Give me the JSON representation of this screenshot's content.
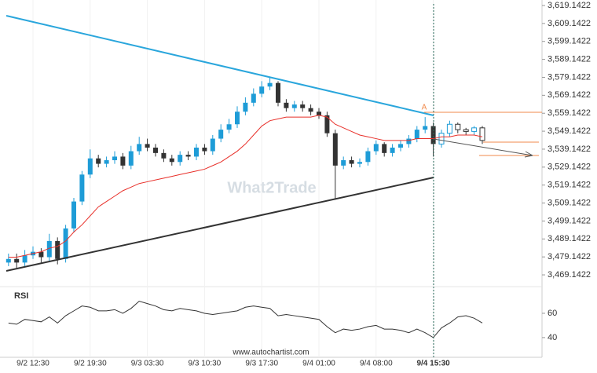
{
  "chart_data": {
    "type": "candlestick",
    "categories": [
      null,
      null,
      null,
      "9/2 12:30",
      null,
      null,
      null,
      null,
      null,
      null,
      "9/2 19:30",
      null,
      null,
      null,
      null,
      null,
      null,
      "9/3 03:30",
      null,
      null,
      null,
      null,
      null,
      null,
      "9/3 10:30",
      null,
      null,
      null,
      null,
      null,
      null,
      "9/3 17:30",
      null,
      null,
      null,
      null,
      null,
      null,
      "9/4 01:00",
      null,
      null,
      null,
      null,
      null,
      null,
      "9/4 08:00",
      null,
      null,
      null,
      null,
      null,
      null,
      "9/4 15:30",
      null,
      null,
      null,
      null,
      null,
      null
    ],
    "open": [
      3476,
      3478,
      3476,
      3480,
      3482,
      3479,
      3488,
      3478,
      3495,
      3510,
      3525,
      3534,
      3531,
      3533,
      3535,
      3530,
      3538,
      3542,
      3540,
      3537,
      3534,
      3532,
      3536,
      3535,
      3540,
      3538,
      3545,
      3550,
      3553,
      3560,
      3565,
      3570,
      3574,
      3576,
      3565,
      3562,
      3564,
      3562,
      3560,
      3558,
      3548,
      3530,
      3533,
      3531,
      3532,
      3538,
      3542,
      3537,
      3540,
      3542,
      3545,
      3550,
      3552,
      3542,
      3548,
      3553,
      3550,
      3549,
      3551
    ],
    "high": [
      3481,
      3481,
      3483,
      3485,
      3484,
      3492,
      3490,
      3497,
      3512,
      3527,
      3539,
      3536,
      3535,
      3538,
      3537,
      3541,
      3546,
      3545,
      3542,
      3539,
      3536,
      3538,
      3538,
      3542,
      3542,
      3547,
      3553,
      3556,
      3563,
      3568,
      3573,
      3577,
      3579,
      3577,
      3567,
      3566,
      3566,
      3564,
      3562,
      3560,
      3550,
      3535,
      3535,
      3534,
      3540,
      3544,
      3543,
      3542,
      3544,
      3547,
      3552,
      3557,
      3554,
      3550,
      3555,
      3554,
      3551,
      3552,
      3552
    ],
    "low": [
      3474,
      3473,
      3474,
      3478,
      3476,
      3477,
      3475,
      3476,
      3493,
      3508,
      3523,
      3529,
      3529,
      3531,
      3528,
      3528,
      3536,
      3538,
      3535,
      3532,
      3530,
      3530,
      3533,
      3533,
      3536,
      3536,
      3543,
      3548,
      3551,
      3558,
      3563,
      3568,
      3572,
      3563,
      3560,
      3560,
      3560,
      3558,
      3556,
      3546,
      3511,
      3528,
      3529,
      3529,
      3530,
      3536,
      3535,
      3535,
      3538,
      3540,
      3543,
      3548,
      3535,
      3540,
      3546,
      3548,
      3547,
      3547,
      3542
    ],
    "close": [
      3478,
      3476,
      3480,
      3482,
      3479,
      3488,
      3478,
      3495,
      3510,
      3525,
      3534,
      3531,
      3533,
      3535,
      3530,
      3538,
      3542,
      3540,
      3537,
      3534,
      3532,
      3536,
      3535,
      3540,
      3538,
      3545,
      3550,
      3553,
      3560,
      3565,
      3570,
      3574,
      3576,
      3565,
      3562,
      3564,
      3562,
      3560,
      3558,
      3548,
      3530,
      3533,
      3531,
      3532,
      3538,
      3542,
      3537,
      3540,
      3542,
      3545,
      3550,
      3552,
      3542,
      3548,
      3553,
      3550,
      3549,
      3551,
      3544
    ],
    "ma": {
      "color": "#e8302a",
      "values": [
        3479,
        3479,
        3480,
        3481,
        3482,
        3484,
        3485,
        3488,
        3493,
        3497,
        3502,
        3507,
        3510,
        3513,
        3516,
        3518,
        3520,
        3521,
        3522,
        3523,
        3524,
        3525,
        3526,
        3527,
        3528,
        3530,
        3532,
        3535,
        3538,
        3542,
        3547,
        3552,
        3555,
        3556,
        3557,
        3557,
        3557,
        3557,
        3558,
        3557,
        3553,
        3551,
        3549,
        3547,
        3546,
        3545,
        3544,
        3544,
        3544,
        3544,
        3545,
        3545,
        3545,
        3546,
        3546,
        3547,
        3547,
        3547,
        3546
      ]
    },
    "up_color": "#1e9cd7",
    "down_color": "#333333",
    "ylim": [
      3462.6,
      3622.2
    ],
    "yticks": [
      {
        "value": 3469.1422,
        "label": "3,469.1422"
      },
      {
        "value": 3479.1422,
        "label": "3,479.1422"
      },
      {
        "value": 3489.1422,
        "label": "3,489.1422"
      },
      {
        "value": 3499.1422,
        "label": "3,499.1422"
      },
      {
        "value": 3509.1422,
        "label": "3,509.1422"
      },
      {
        "value": 3519.1422,
        "label": "3,519.1422"
      },
      {
        "value": 3529.1422,
        "label": "3,529.1422"
      },
      {
        "value": 3539.1422,
        "label": "3,539.1422"
      },
      {
        "value": 3549.1422,
        "label": "3,549.1422"
      },
      {
        "value": 3559.1422,
        "label": "3,559.1422"
      },
      {
        "value": 3569.1422,
        "label": "3,569.1422"
      },
      {
        "value": 3579.1422,
        "label": "3,579.1422"
      },
      {
        "value": 3589.1422,
        "label": "3,589.1422"
      },
      {
        "value": 3599.1422,
        "label": "3,599.1422"
      },
      {
        "value": 3609.1422,
        "label": "3,609.1422"
      },
      {
        "value": 3619.1422,
        "label": "3,619.1422"
      }
    ],
    "rsi": {
      "label": "RSI",
      "color": "#333333",
      "values": [
        52,
        51,
        55,
        54,
        53,
        57,
        52,
        58,
        62,
        66,
        65,
        62,
        62,
        63,
        60,
        64,
        70,
        68,
        66,
        63,
        62,
        64,
        63,
        62,
        60,
        59,
        60,
        61,
        62,
        65,
        66,
        65,
        64,
        58,
        59,
        58,
        57,
        56,
        55,
        49,
        44,
        47,
        46,
        47,
        49,
        50,
        47,
        47,
        46,
        44,
        47,
        44,
        40,
        48,
        52,
        57,
        58,
        56,
        52
      ],
      "ylim": [
        27,
        75.5
      ],
      "yticks": [
        40,
        60
      ]
    },
    "pattern_label": "A",
    "watermark": "What2Trade",
    "source": "www.autochartist.com"
  }
}
